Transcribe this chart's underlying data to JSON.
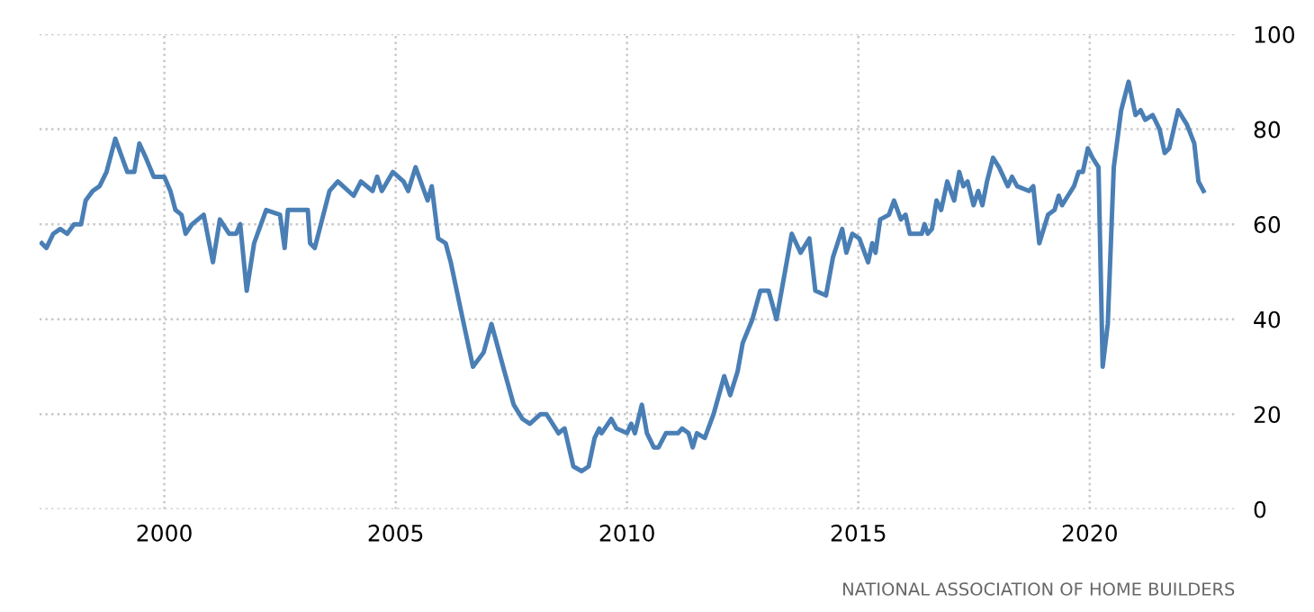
{
  "chart_data": {
    "type": "line",
    "x": [
      1997.35,
      1997.45,
      1997.6,
      1997.75,
      1997.9,
      1998.05,
      1998.2,
      1998.3,
      1998.45,
      1998.6,
      1998.75,
      1998.94,
      1999.2,
      1999.35,
      1999.46,
      1999.6,
      1999.77,
      2000.0,
      2000.13,
      2000.24,
      2000.37,
      2000.46,
      2000.6,
      2000.85,
      2001.05,
      2001.2,
      2001.4,
      2001.55,
      2001.64,
      2001.78,
      2001.94,
      2002.2,
      2002.5,
      2002.6,
      2002.67,
      2002.9,
      2003.1,
      2003.15,
      2003.25,
      2003.57,
      2003.75,
      2004.09,
      2004.25,
      2004.5,
      2004.6,
      2004.7,
      2004.94,
      2005.17,
      2005.27,
      2005.43,
      2005.69,
      2005.78,
      2005.92,
      2006.08,
      2006.19,
      2006.45,
      2006.67,
      2006.9,
      2007.07,
      2007.35,
      2007.55,
      2007.74,
      2007.9,
      2008.13,
      2008.26,
      2008.52,
      2008.65,
      2008.84,
      2009.02,
      2009.17,
      2009.3,
      2009.4,
      2009.45,
      2009.66,
      2009.77,
      2010.0,
      2010.09,
      2010.17,
      2010.32,
      2010.43,
      2010.58,
      2010.68,
      2010.84,
      2011.1,
      2011.19,
      2011.33,
      2011.42,
      2011.51,
      2011.68,
      2011.87,
      2012.1,
      2012.23,
      2012.39,
      2012.5,
      2012.71,
      2012.88,
      2013.06,
      2013.23,
      2013.56,
      2013.75,
      2013.94,
      2014.07,
      2014.3,
      2014.45,
      2014.65,
      2014.74,
      2014.87,
      2015.02,
      2015.21,
      2015.3,
      2015.37,
      2015.47,
      2015.66,
      2015.77,
      2015.92,
      2016.02,
      2016.11,
      2016.37,
      2016.43,
      2016.5,
      2016.59,
      2016.69,
      2016.79,
      2016.92,
      2017.07,
      2017.18,
      2017.27,
      2017.36,
      2017.49,
      2017.59,
      2017.68,
      2017.78,
      2017.91,
      2018.04,
      2018.23,
      2018.32,
      2018.43,
      2018.69,
      2018.78,
      2018.91,
      2019.1,
      2019.24,
      2019.33,
      2019.4,
      2019.53,
      2019.66,
      2019.76,
      2019.85,
      2019.96,
      2020.06,
      2020.19,
      2020.28,
      2020.39,
      2020.52,
      2020.68,
      2020.84,
      2020.99,
      2021.1,
      2021.2,
      2021.36,
      2021.51,
      2021.62,
      2021.72,
      2021.91,
      2022.1,
      2022.26,
      2022.35,
      2022.46
    ],
    "series": [
      {
        "color": "#4a7fb5",
        "values": [
          56,
          55,
          58,
          59,
          58,
          60,
          60,
          65,
          67,
          68,
          71,
          78,
          71,
          71,
          77,
          74,
          70,
          70,
          67,
          63,
          62,
          58,
          60,
          62,
          52,
          61,
          58,
          58,
          60,
          46,
          56,
          63,
          62,
          55,
          63,
          63,
          63,
          56,
          55,
          67,
          69,
          66,
          69,
          67,
          70,
          67,
          71,
          69,
          67,
          72,
          65,
          68,
          57,
          56,
          52,
          40,
          30,
          33,
          39,
          29,
          22,
          19,
          18,
          20,
          20,
          16,
          17,
          9,
          8,
          9,
          15,
          17,
          16,
          19,
          17,
          16,
          18,
          16,
          22,
          16,
          13,
          13,
          16,
          16,
          17,
          16,
          13,
          16,
          15,
          20,
          28,
          24,
          29,
          35,
          40,
          46,
          46,
          40,
          58,
          54,
          57,
          46,
          45,
          53,
          59,
          54,
          58,
          57,
          52,
          56,
          54,
          61,
          62,
          65,
          61,
          62,
          58,
          58,
          60,
          58,
          59,
          65,
          63,
          69,
          65,
          71,
          68,
          69,
          64,
          67,
          64,
          69,
          74,
          72,
          68,
          70,
          68,
          67,
          68,
          56,
          62,
          63,
          66,
          64,
          66,
          68,
          71,
          71,
          76,
          74,
          72,
          30,
          39,
          72,
          84,
          90,
          83,
          84,
          82,
          83,
          80,
          75,
          76,
          84,
          81,
          77,
          69,
          67
        ]
      }
    ],
    "xlim": [
      1997.3,
      2023.2
    ],
    "ylim": [
      0,
      100
    ],
    "xticks": [
      2000,
      2005,
      2010,
      2015,
      2020
    ],
    "yticks": [
      0,
      20,
      40,
      60,
      80,
      100
    ],
    "grid": true,
    "line_style": "solid",
    "marker": "none",
    "annotations": [
      "NATIONAL ASSOCIATION OF HOME BUILDERS"
    ]
  }
}
